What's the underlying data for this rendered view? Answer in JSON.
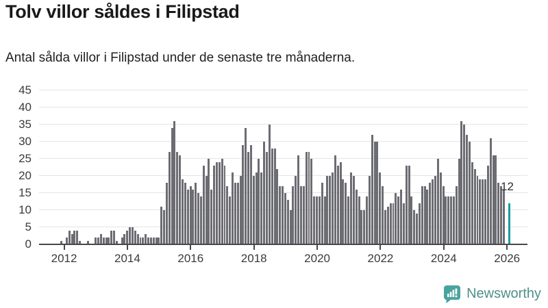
{
  "header": {
    "title": "Tolv villor såldes i Filipstad",
    "subtitle": "Antal sålda villor i Filipstad under de senaste tre månaderna."
  },
  "chart_data": {
    "type": "bar",
    "title": "Tolv villor såldes i Filipstad",
    "subtitle": "Antal sålda villor i Filipstad under de senaste tre månaderna.",
    "x_unit": "month",
    "x_start": "2011-04",
    "x_end": "2026-02",
    "values": [
      0,
      0,
      0,
      0,
      0,
      0,
      0,
      0,
      1,
      0,
      2,
      4,
      3,
      4,
      4,
      1,
      0,
      0,
      1,
      0,
      0,
      2,
      2,
      3,
      2,
      2,
      2,
      4,
      4,
      1,
      0,
      2,
      3,
      4,
      5,
      5,
      4,
      3,
      2,
      2,
      3,
      2,
      2,
      2,
      2,
      2,
      11,
      10,
      18,
      27,
      34,
      36,
      27,
      26,
      19,
      18,
      16,
      17,
      16,
      18,
      15,
      14,
      23,
      20,
      25,
      16,
      23,
      24,
      24,
      25,
      23,
      17,
      14,
      21,
      18,
      18,
      20,
      29,
      34,
      27,
      29,
      20,
      21,
      25,
      21,
      30,
      27,
      35,
      28,
      28,
      22,
      17,
      17,
      15,
      13,
      10,
      17,
      20,
      26,
      17,
      17,
      27,
      27,
      25,
      14,
      14,
      14,
      18,
      14,
      20,
      20,
      21,
      26,
      23,
      24,
      19,
      18,
      14,
      21,
      20,
      16,
      14,
      10,
      10,
      14,
      20,
      32,
      30,
      30,
      21,
      17,
      10,
      11,
      12,
      12,
      15,
      14,
      16,
      12,
      23,
      23,
      14,
      10,
      9,
      12,
      17,
      17,
      16,
      18,
      19,
      20,
      25,
      21,
      17,
      14,
      14,
      14,
      14,
      17,
      25,
      36,
      35,
      32,
      30,
      24,
      22,
      20,
      19,
      19,
      19,
      23,
      31,
      26,
      26,
      18,
      17,
      16,
      null,
      12
    ],
    "x_ticks": [
      {
        "label": "2012",
        "month_index": 9
      },
      {
        "label": "2014",
        "month_index": 33
      },
      {
        "label": "2016",
        "month_index": 57
      },
      {
        "label": "2018",
        "month_index": 81
      },
      {
        "label": "2020",
        "month_index": 105
      },
      {
        "label": "2022",
        "month_index": 129
      },
      {
        "label": "2024",
        "month_index": 153
      },
      {
        "label": "2026",
        "month_index": 177
      }
    ],
    "y_ticks": [
      0,
      5,
      10,
      15,
      20,
      25,
      30,
      35,
      40,
      45
    ],
    "ylim": [
      0,
      45
    ],
    "grid": "horizontal",
    "legend": "none",
    "bar_color": "#6c6c73",
    "highlight": {
      "month_index": 178,
      "value": 12,
      "label": "12",
      "color": "#189e9e"
    }
  },
  "footer": {
    "brand": "Newsworthy",
    "brand_text_color": "#4e8f8c",
    "logo_color": "#4aa39e",
    "logo_icon": "newsworthy-speech-bubble-bar-chart-icon"
  }
}
